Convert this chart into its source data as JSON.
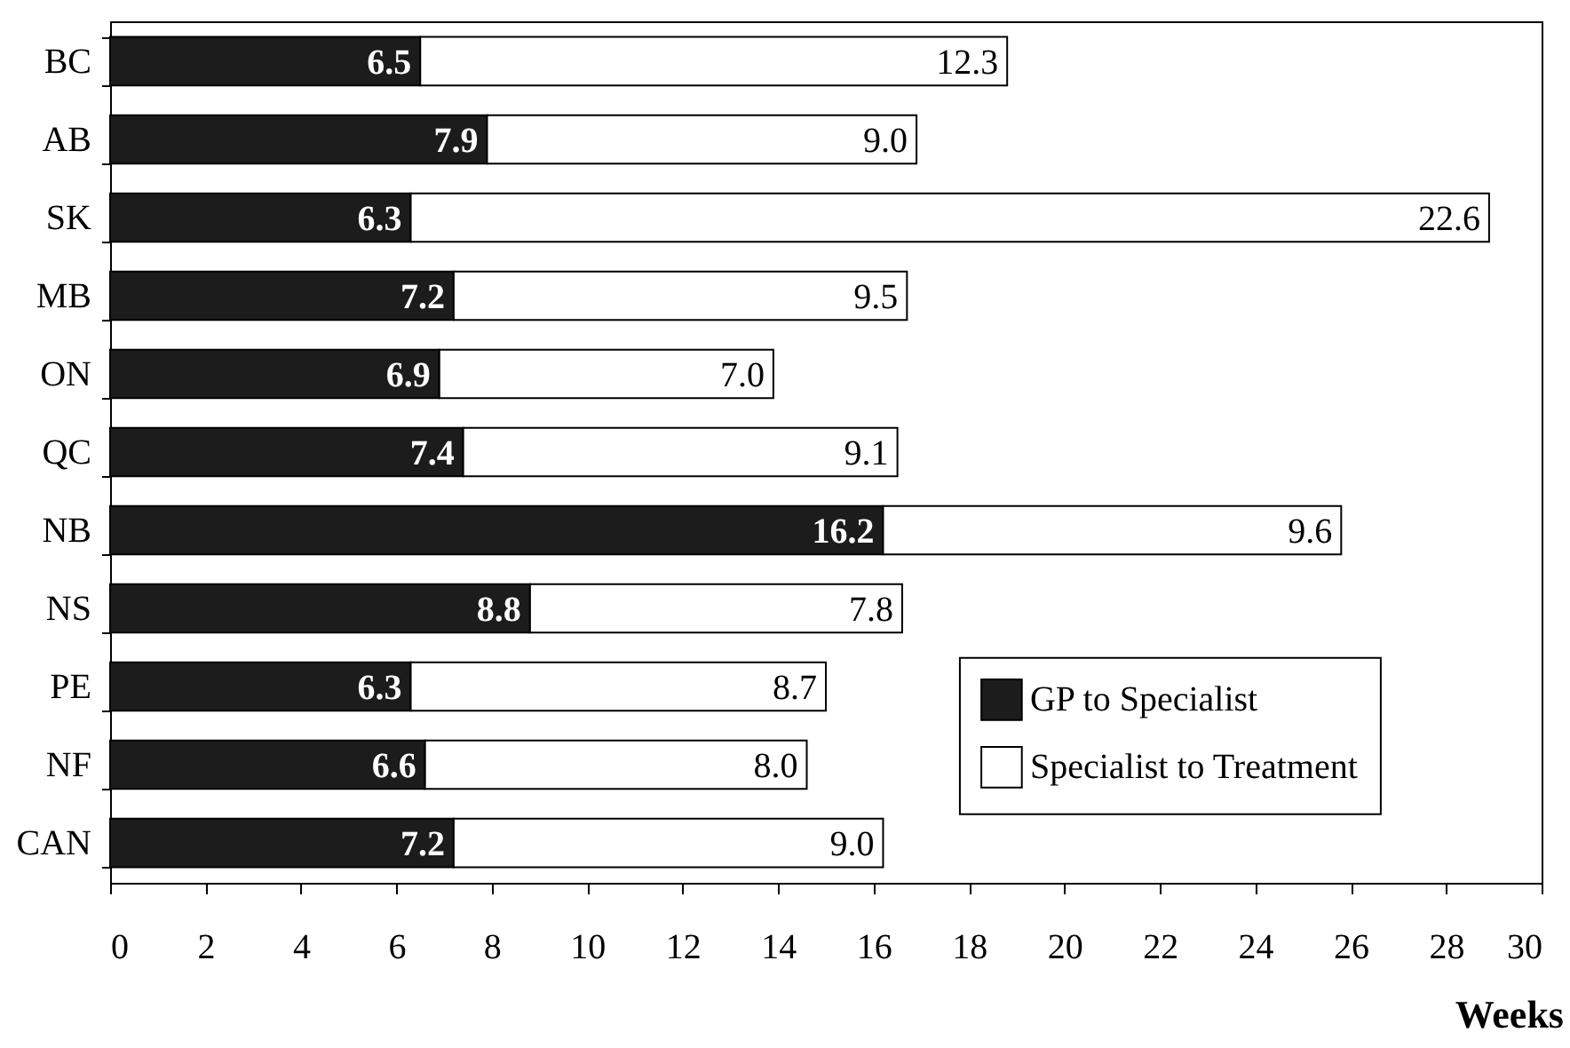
{
  "chart_data": {
    "type": "bar",
    "orientation": "horizontal",
    "stacked": true,
    "categories": [
      "BC",
      "AB",
      "SK",
      "MB",
      "ON",
      "QC",
      "NB",
      "NS",
      "PE",
      "NF",
      "CAN"
    ],
    "series": [
      {
        "name": "GP to Specialist",
        "color": "#1c1c1c",
        "values": [
          6.5,
          7.9,
          6.3,
          7.2,
          6.9,
          7.4,
          16.2,
          8.8,
          6.3,
          6.6,
          7.2
        ],
        "value_labels": [
          "6.5",
          "7.9",
          "6.3",
          "7.2",
          "6.9",
          "7.4",
          "16.2",
          "8.8",
          "6.3",
          "6.6",
          "7.2"
        ]
      },
      {
        "name": "Specialist to Treatment",
        "color": "#ffffff",
        "values": [
          12.3,
          9.0,
          22.6,
          9.5,
          7.0,
          9.1,
          9.6,
          7.8,
          8.7,
          8.0,
          9.0
        ],
        "value_labels": [
          "12.3",
          "9.0",
          "22.6",
          "9.5",
          "7.0",
          "9.1",
          "9.6",
          "7.8",
          "8.7",
          "8.0",
          "9.0"
        ]
      }
    ],
    "xlabel": "Weeks",
    "xlim": [
      0,
      30
    ],
    "xticks": [
      0,
      2,
      4,
      6,
      8,
      10,
      12,
      14,
      16,
      18,
      20,
      22,
      24,
      26,
      28,
      30
    ],
    "legend": "bottom right",
    "grid": false
  }
}
